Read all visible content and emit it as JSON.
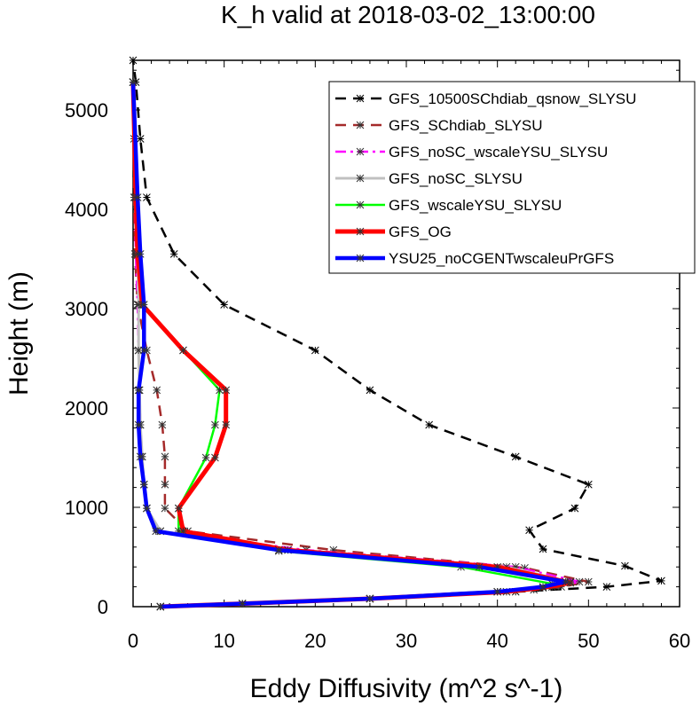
{
  "chart_data": {
    "type": "line",
    "title": "K_h valid at 2018-03-02_13:00:00",
    "xlabel": "Eddy Diffusivity (m^2 s^-1)",
    "ylabel": "Height (m)",
    "xlim": [
      0,
      60
    ],
    "ylim": [
      0,
      5500
    ],
    "xticks": [
      "0",
      "10",
      "20",
      "30",
      "40",
      "50",
      "60"
    ],
    "yticks": [
      "0",
      "1000",
      "2000",
      "3000",
      "4000",
      "5000"
    ],
    "legend_position": "top-right",
    "series": [
      {
        "name": "GFS_10500SChdiab_qsnow_SLYSU",
        "color": "#000000",
        "dash": "dash",
        "points": [
          [
            3,
            0
          ],
          [
            12,
            30
          ],
          [
            26,
            80
          ],
          [
            42,
            150
          ],
          [
            52,
            200
          ],
          [
            58,
            260
          ],
          [
            54,
            410
          ],
          [
            45,
            580
          ],
          [
            43.5,
            770
          ],
          [
            48.5,
            990
          ],
          [
            50,
            1230
          ],
          [
            42,
            1510
          ],
          [
            32.5,
            1830
          ],
          [
            26,
            2180
          ],
          [
            20,
            2580
          ],
          [
            10,
            3040
          ],
          [
            4.5,
            3550
          ],
          [
            1.5,
            4120
          ],
          [
            0.8,
            4710
          ],
          [
            0.3,
            5280
          ],
          [
            0,
            5500
          ]
        ]
      },
      {
        "name": "GFS_SChdiab_SLYSU",
        "color": "#a52a2a",
        "dash": "dash",
        "points": [
          [
            3,
            0
          ],
          [
            12,
            30
          ],
          [
            26,
            80
          ],
          [
            41,
            150
          ],
          [
            47,
            200
          ],
          [
            50,
            250
          ],
          [
            43,
            390
          ],
          [
            22,
            570
          ],
          [
            6,
            760
          ],
          [
            3.5,
            990
          ],
          [
            3.5,
            1230
          ],
          [
            3.5,
            1510
          ],
          [
            3.2,
            1830
          ],
          [
            2.6,
            2180
          ],
          [
            1.5,
            2580
          ],
          [
            0.5,
            3040
          ],
          [
            0.2,
            3550
          ],
          [
            0.1,
            4120
          ],
          [
            0.1,
            4710
          ],
          [
            0,
            5280
          ]
        ]
      },
      {
        "name": "GFS_noSC_wscaleYSU_SLYSU",
        "color": "#ff00ff",
        "dash": "dashdot",
        "points": [
          [
            3,
            0
          ],
          [
            12,
            30
          ],
          [
            26,
            80
          ],
          [
            40,
            150
          ],
          [
            46,
            200
          ],
          [
            49,
            250
          ],
          [
            42,
            400
          ],
          [
            19,
            570
          ],
          [
            3,
            760
          ],
          [
            1.5,
            990
          ],
          [
            1.2,
            1230
          ],
          [
            1,
            1510
          ],
          [
            0.8,
            1830
          ],
          [
            0.7,
            2180
          ],
          [
            0.6,
            2580
          ],
          [
            0.5,
            3040
          ],
          [
            0.3,
            3550
          ],
          [
            0.2,
            4120
          ],
          [
            0,
            5280
          ]
        ]
      },
      {
        "name": "GFS_noSC_SLYSU",
        "color": "#c0c0c0",
        "dash": "solid",
        "points": [
          [
            3,
            0
          ],
          [
            12,
            30
          ],
          [
            26,
            80
          ],
          [
            40,
            150
          ],
          [
            46,
            200
          ],
          [
            48,
            250
          ],
          [
            41,
            400
          ],
          [
            17,
            570
          ],
          [
            3,
            760
          ],
          [
            1.5,
            990
          ],
          [
            1.2,
            1230
          ],
          [
            1,
            1510
          ],
          [
            0.8,
            1830
          ],
          [
            0.7,
            2180
          ],
          [
            0.6,
            2580
          ],
          [
            0.6,
            3040
          ],
          [
            0.5,
            3550
          ],
          [
            0.3,
            4120
          ],
          [
            0,
            5280
          ]
        ]
      },
      {
        "name": "GFS_wscaleYSU_SLYSU",
        "color": "#00ff00",
        "dash": "solid",
        "points": [
          [
            3,
            0
          ],
          [
            12,
            30
          ],
          [
            26,
            80
          ],
          [
            40,
            150
          ],
          [
            44,
            170
          ],
          [
            46,
            230
          ],
          [
            36,
            400
          ],
          [
            16,
            560
          ],
          [
            5,
            760
          ],
          [
            5,
            990
          ],
          [
            8,
            1500
          ],
          [
            9,
            1830
          ],
          [
            9.5,
            2180
          ],
          [
            5.5,
            2580
          ],
          [
            1,
            3040
          ],
          [
            0.5,
            3550
          ],
          [
            0.3,
            4120
          ],
          [
            0,
            5280
          ]
        ]
      },
      {
        "name": "GFS_OG",
        "color": "#ff0000",
        "dash": "solid",
        "points": [
          [
            3,
            0
          ],
          [
            12,
            30
          ],
          [
            26,
            80
          ],
          [
            41,
            150
          ],
          [
            45,
            190
          ],
          [
            48,
            240
          ],
          [
            40,
            400
          ],
          [
            17,
            570
          ],
          [
            5.5,
            760
          ],
          [
            5,
            990
          ],
          [
            9,
            1500
          ],
          [
            10.2,
            1830
          ],
          [
            10.2,
            2180
          ],
          [
            5.5,
            2580
          ],
          [
            1,
            3040
          ],
          [
            0.5,
            3550
          ],
          [
            0.3,
            4120
          ],
          [
            0,
            5280
          ]
        ]
      },
      {
        "name": "YSU25_noCGENTwscaleuPrGFS",
        "color": "#0000ff",
        "dash": "solid",
        "points": [
          [
            3,
            0
          ],
          [
            12,
            30
          ],
          [
            26,
            80
          ],
          [
            40,
            150
          ],
          [
            45,
            200
          ],
          [
            47.5,
            250
          ],
          [
            38,
            400
          ],
          [
            16,
            570
          ],
          [
            2.5,
            760
          ],
          [
            1.5,
            990
          ],
          [
            1.2,
            1230
          ],
          [
            0.8,
            1510
          ],
          [
            0.6,
            1830
          ],
          [
            0.6,
            2180
          ],
          [
            1.2,
            2580
          ],
          [
            1.2,
            3040
          ],
          [
            0.8,
            3550
          ],
          [
            0.5,
            4120
          ],
          [
            0,
            5280
          ]
        ]
      }
    ]
  }
}
